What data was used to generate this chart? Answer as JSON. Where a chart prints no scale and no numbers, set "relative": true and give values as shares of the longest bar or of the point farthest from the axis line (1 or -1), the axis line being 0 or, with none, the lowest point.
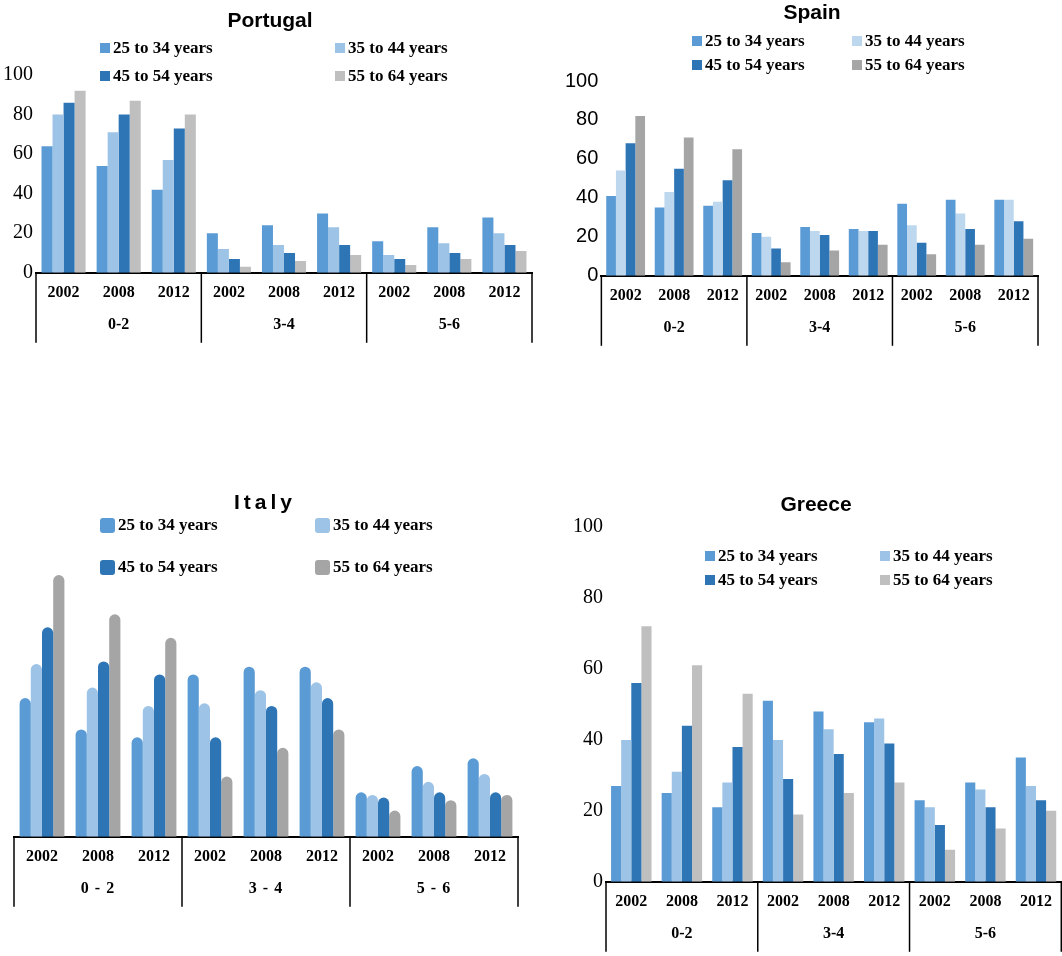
{
  "chart_data": [
    {
      "type": "bar",
      "title": "Portugal",
      "legend": "top",
      "ylim": [
        0,
        100
      ],
      "yticks": [
        0,
        20,
        40,
        60,
        80,
        100
      ],
      "categories": [
        "2002",
        "2008",
        "2012",
        "2002",
        "2008",
        "2012",
        "2002",
        "2008",
        "2012"
      ],
      "annotations": [
        "0-2",
        "3-4",
        "5-6"
      ],
      "series": [
        {
          "name": "25 to 34 years",
          "color": "#5b9bd5",
          "values": [
            64,
            54,
            42,
            20,
            24,
            30,
            16,
            23,
            28
          ]
        },
        {
          "name": "35 to 44 years",
          "color": "#9dc3e6",
          "values": [
            80,
            71,
            57,
            12,
            14,
            23,
            9,
            15,
            20
          ]
        },
        {
          "name": "45 to 54 years",
          "color": "#2e75b6",
          "values": [
            86,
            80,
            73,
            7,
            10,
            14,
            7,
            10,
            14
          ]
        },
        {
          "name": "55 to 64 years",
          "color": "#bfbfbf",
          "values": [
            92,
            87,
            80,
            3,
            6,
            9,
            4,
            7,
            11
          ]
        }
      ]
    },
    {
      "type": "bar",
      "title": "Spain",
      "legend": "top",
      "ylim": [
        0,
        100
      ],
      "yticks": [
        0,
        20,
        40,
        60,
        80,
        100
      ],
      "categories": [
        "2002",
        "2008",
        "2012",
        "2002",
        "2008",
        "2012",
        "2002",
        "2008",
        "2012"
      ],
      "annotations": [
        "0-2",
        "3-4",
        "5-6"
      ],
      "series": [
        {
          "name": "25 to 34 years",
          "color": "#5b9bd5",
          "values": [
            41,
            35,
            36,
            22,
            25,
            24,
            37,
            39,
            39
          ]
        },
        {
          "name": "35 to 44 years",
          "color": "#bdd7ee",
          "values": [
            54,
            43,
            38,
            20,
            23,
            23,
            26,
            32,
            39
          ]
        },
        {
          "name": "45 to 54 years",
          "color": "#2e75b6",
          "values": [
            68,
            55,
            49,
            14,
            21,
            23,
            17,
            24,
            28
          ]
        },
        {
          "name": "55 to 64 years",
          "color": "#a5a5a5",
          "values": [
            82,
            71,
            65,
            7,
            13,
            16,
            11,
            16,
            19
          ]
        }
      ]
    },
    {
      "type": "bar",
      "title": "Italy",
      "legend": "top",
      "relative": true,
      "categories": [
        "2002",
        "2008",
        "2012",
        "2002",
        "2008",
        "2012",
        "2002",
        "2008",
        "2012"
      ],
      "annotations": [
        "0 - 2",
        "3 - 4",
        "5 - 6"
      ],
      "series": [
        {
          "name": "25 to 34 years",
          "color": "#5b9bd5",
          "values": [
            0.53,
            0.41,
            0.38,
            0.62,
            0.65,
            0.65,
            0.17,
            0.27,
            0.3
          ]
        },
        {
          "name": "35 to 44 years",
          "color": "#9dc3e6",
          "values": [
            0.66,
            0.57,
            0.5,
            0.51,
            0.56,
            0.59,
            0.16,
            0.21,
            0.24
          ]
        },
        {
          "name": "45 to 54 years",
          "color": "#2e75b6",
          "values": [
            0.8,
            0.67,
            0.62,
            0.38,
            0.5,
            0.53,
            0.15,
            0.17,
            0.17
          ]
        },
        {
          "name": "55 to 64 years",
          "color": "#a5a5a5",
          "values": [
            1,
            0.85,
            0.76,
            0.23,
            0.34,
            0.41,
            0.1,
            0.14,
            0.16
          ]
        }
      ]
    },
    {
      "type": "bar",
      "title": "Greece",
      "legend": "top",
      "ylim": [
        0,
        100
      ],
      "yticks": [
        0,
        20,
        40,
        60,
        80,
        100
      ],
      "categories": [
        "2002",
        "2008",
        "2012",
        "2002",
        "2008",
        "2012",
        "2002",
        "2008",
        "2012"
      ],
      "annotations": [
        "0-2",
        "3-4",
        "5-6"
      ],
      "series": [
        {
          "name": "25 to 34 years",
          "color": "#5b9bd5",
          "values": [
            27,
            25,
            21,
            51,
            48,
            45,
            23,
            28,
            35
          ]
        },
        {
          "name": "35 to 44 years",
          "color": "#9dc3e6",
          "values": [
            40,
            31,
            28,
            40,
            43,
            46,
            21,
            26,
            27
          ]
        },
        {
          "name": "45 to 54 years",
          "color": "#2e75b6",
          "values": [
            56,
            44,
            38,
            29,
            36,
            39,
            16,
            21,
            23
          ]
        },
        {
          "name": "55 to 64 years",
          "color": "#bfbfbf",
          "values": [
            72,
            61,
            53,
            19,
            25,
            28,
            9,
            15,
            20
          ]
        }
      ]
    }
  ]
}
